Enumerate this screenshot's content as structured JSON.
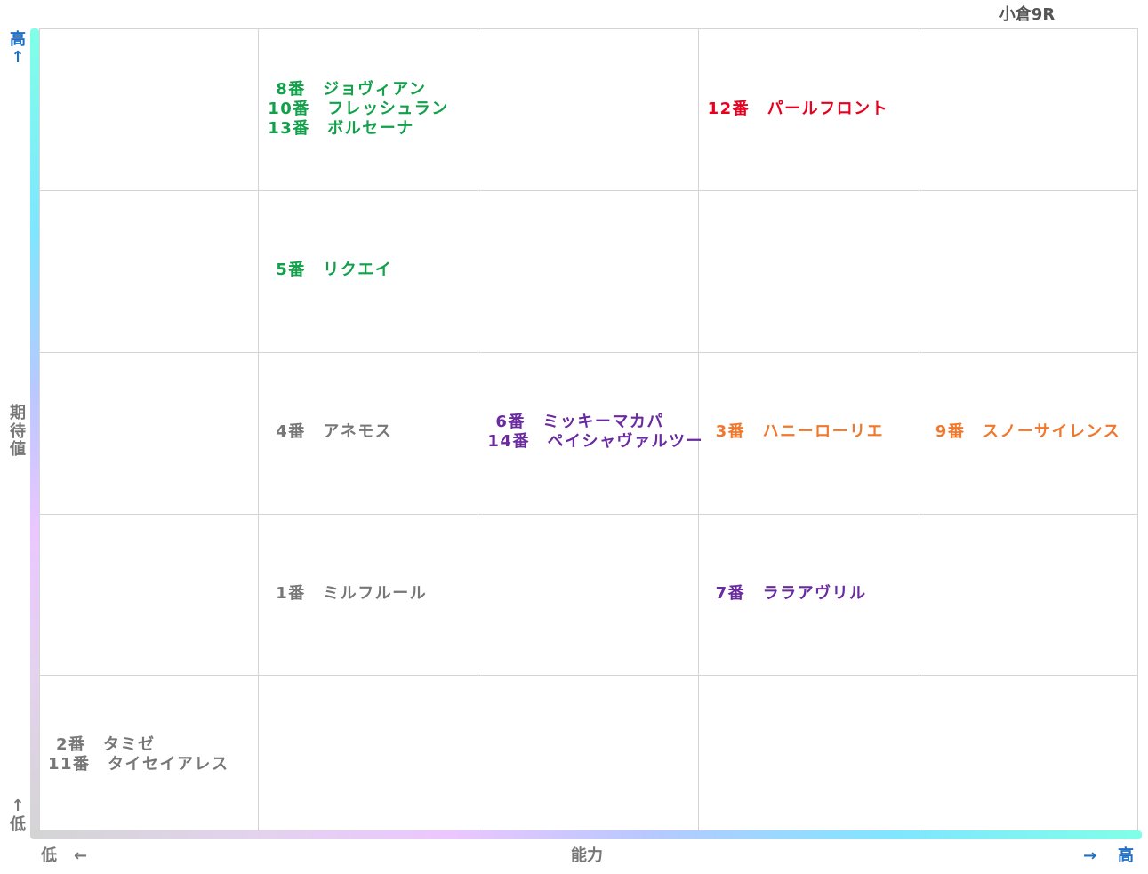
{
  "title": "小倉9R",
  "axes": {
    "y_label": "期待値",
    "y_high": "高",
    "y_high_arrow": "↑",
    "y_low": "低",
    "y_low_arrow": "↑",
    "x_label": "能力",
    "x_low": "低",
    "x_low_arrow": "←",
    "x_high": "高",
    "x_high_arrow": "→"
  },
  "colors": {
    "green": "#12a04a",
    "red": "#e8001e",
    "gray": "#777777",
    "purple": "#6a2aa0",
    "orange": "#f0782c",
    "arrow_blue": "#1f6fc4"
  },
  "chart_data": {
    "type": "table",
    "columns": 5,
    "rows": 5,
    "x_levels": [
      1,
      2,
      3,
      4,
      5
    ],
    "y_levels": [
      5,
      4,
      3,
      2,
      1
    ],
    "grid": true,
    "cells": [
      {
        "x": 2,
        "y": 5,
        "color": "green",
        "lines": [
          "8番　ジョヴィアン",
          "10番　フレッシュラン",
          "13番　ボルセーナ"
        ]
      },
      {
        "x": 4,
        "y": 5,
        "color": "red",
        "lines": [
          "12番　パールフロント"
        ]
      },
      {
        "x": 2,
        "y": 4,
        "color": "green",
        "lines": [
          "5番　リクエイ"
        ]
      },
      {
        "x": 2,
        "y": 3,
        "color": "gray",
        "lines": [
          "4番　アネモス"
        ]
      },
      {
        "x": 3,
        "y": 3,
        "color": "purple",
        "lines": [
          "6番　ミッキーマカパ",
          "14番　ペイシャヴァルツー"
        ]
      },
      {
        "x": 4,
        "y": 3,
        "color": "orange",
        "lines": [
          "3番　ハニーローリエ"
        ]
      },
      {
        "x": 5,
        "y": 3,
        "color": "orange",
        "lines": [
          "9番　スノーサイレンス"
        ]
      },
      {
        "x": 2,
        "y": 2,
        "color": "gray",
        "lines": [
          "1番　ミルフルール"
        ]
      },
      {
        "x": 4,
        "y": 2,
        "color": "purple",
        "lines": [
          "7番　ララアヴリル"
        ]
      },
      {
        "x": 1,
        "y": 1,
        "color": "gray",
        "lines": [
          "2番　タミゼ",
          "11番　タイセイアレス"
        ]
      }
    ]
  }
}
